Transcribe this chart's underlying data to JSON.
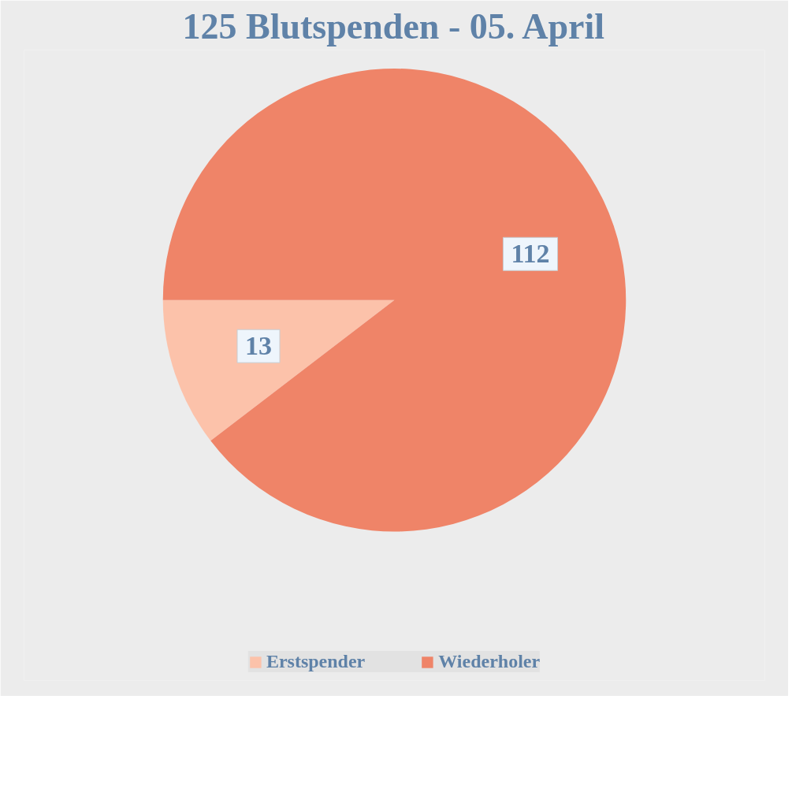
{
  "chart_data": {
    "type": "pie",
    "title": "125 Blutspenden - 05. April",
    "categories": [
      "Erstspender",
      "Wiederholer"
    ],
    "values": [
      13,
      112
    ],
    "colors": [
      "#fcc2aa",
      "#ef8468"
    ],
    "data_labels": true,
    "legend": "bottom"
  }
}
